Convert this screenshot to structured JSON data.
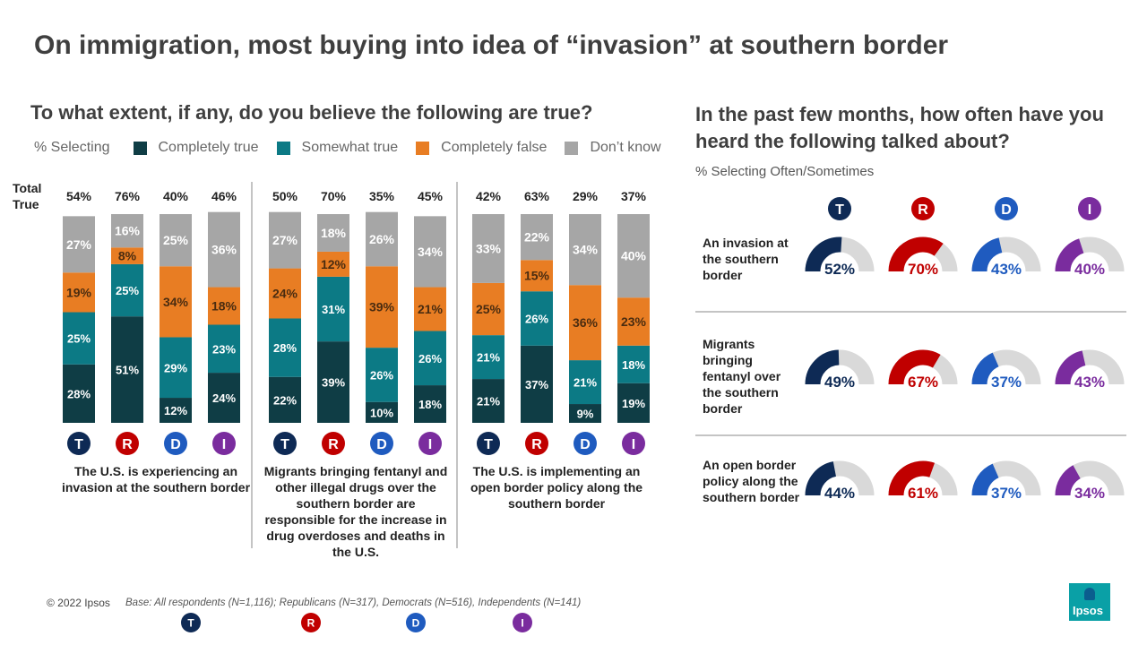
{
  "title": "On immigration, most buying into idea of “invasion” at southern border",
  "left": {
    "question": "To what extent, if any, do you believe the following are true?",
    "legend_label": "% Selecting",
    "total_true_label": "Total True",
    "colors": {
      "completely_true": "#0f3d45",
      "somewhat_true": "#0c7a85",
      "completely_false": "#e87d23",
      "dont_know": "#a6a6a6"
    },
    "statements": [
      "The U.S. is experiencing an invasion at the southern border",
      "Migrants bringing fentanyl and other illegal drugs over the southern border are responsible for the increase in drug overdoses and deaths in the U.S.",
      "The U.S. is implementing an open border policy along the southern border"
    ]
  },
  "right": {
    "question": "In the past few months, how often have you heard the following talked about?",
    "subtitle": "% Selecting Often/Sometimes",
    "rows": [
      "An invasion at the southern border",
      "Migrants bringing fentanyl over the southern border",
      "An open border policy along the southern border"
    ]
  },
  "groups": [
    {
      "key": "T",
      "color": "#0e2a55"
    },
    {
      "key": "R",
      "color": "#c00000"
    },
    {
      "key": "D",
      "color": "#1f5bbf"
    },
    {
      "key": "I",
      "color": "#7a2c9e"
    }
  ],
  "chart_data": [
    {
      "type": "bar",
      "stacked": true,
      "series_names": [
        "Completely true",
        "Somewhat true",
        "Completely false",
        "Don’t know"
      ],
      "panels": [
        {
          "categories": [
            "T",
            "R",
            "D",
            "I"
          ],
          "total_true": [
            "54%",
            "76%",
            "40%",
            "46%"
          ],
          "values": [
            [
              28,
              25,
              19,
              27
            ],
            [
              51,
              25,
              8,
              16
            ],
            [
              12,
              29,
              34,
              25
            ],
            [
              24,
              23,
              18,
              36
            ]
          ]
        },
        {
          "categories": [
            "T",
            "R",
            "D",
            "I"
          ],
          "total_true": [
            "50%",
            "70%",
            "35%",
            "45%"
          ],
          "values": [
            [
              22,
              28,
              24,
              27
            ],
            [
              39,
              31,
              12,
              18
            ],
            [
              10,
              26,
              39,
              26
            ],
            [
              18,
              26,
              21,
              34
            ]
          ]
        },
        {
          "categories": [
            "T",
            "R",
            "D",
            "I"
          ],
          "total_true": [
            "42%",
            "63%",
            "29%",
            "37%"
          ],
          "values": [
            [
              21,
              21,
              25,
              33
            ],
            [
              37,
              26,
              15,
              22
            ],
            [
              9,
              21,
              36,
              34
            ],
            [
              19,
              18,
              23,
              40
            ]
          ]
        }
      ]
    },
    {
      "type": "gauge",
      "categories": [
        "T",
        "R",
        "D",
        "I"
      ],
      "rows": [
        {
          "values": [
            52,
            70,
            43,
            40
          ]
        },
        {
          "values": [
            49,
            67,
            37,
            43
          ]
        },
        {
          "values": [
            44,
            61,
            37,
            34
          ]
        }
      ]
    }
  ],
  "footer": {
    "copyright": "© 2022 Ipsos",
    "base": "Base: All respondents (N=1,116); Republicans (N=317), Democrats (N=516), Independents (N=141)",
    "logo": "Ipsos"
  }
}
